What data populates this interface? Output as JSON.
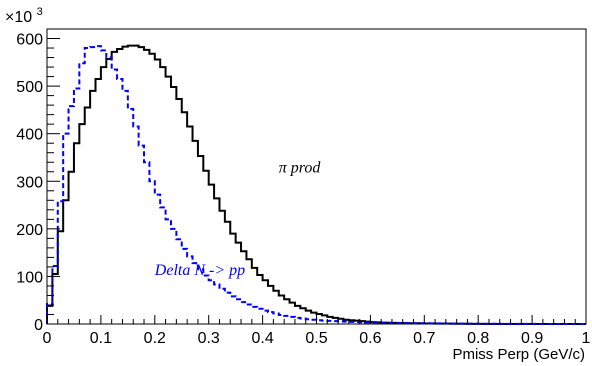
{
  "chart_data": {
    "type": "line",
    "title": "",
    "xlabel": "Pmiss Perp (GeV/c)",
    "ylabel": "",
    "y_multiplier": {
      "base": "×10",
      "exponent": "3"
    },
    "xlim": [
      0,
      1
    ],
    "ylim": [
      0,
      620
    ],
    "x_ticks": [
      0,
      0.1,
      0.2,
      0.3,
      0.4,
      0.5,
      0.6,
      0.7,
      0.8,
      0.9,
      1
    ],
    "x_tick_labels": [
      "0",
      "0.1",
      "0.2",
      "0.3",
      "0.4",
      "0.5",
      "0.6",
      "0.7",
      "0.8",
      "0.9",
      "1"
    ],
    "y_ticks": [
      0,
      100,
      200,
      300,
      400,
      500,
      600
    ],
    "y_tick_labels": [
      "0",
      "100",
      "200",
      "300",
      "400",
      "500",
      "600"
    ],
    "grid": false,
    "legend": "none",
    "bin_width": 0.01,
    "bin_edges_start": 0,
    "series": [
      {
        "style": "solid",
        "color": "#000000",
        "values": [
          38,
          105,
          195,
          260,
          320,
          380,
          420,
          455,
          490,
          515,
          540,
          557,
          572,
          578,
          583,
          585,
          585,
          582,
          576,
          568,
          556,
          540,
          520,
          498,
          473,
          445,
          415,
          385,
          353,
          322,
          293,
          264,
          238,
          215,
          190,
          171,
          153,
          136,
          118,
          103,
          92,
          80,
          70,
          60,
          52,
          45,
          38,
          33,
          28,
          24,
          21,
          18,
          15,
          13,
          11,
          9,
          8,
          7,
          6,
          5,
          4,
          3.5,
          3,
          2.7,
          2.4,
          2.1,
          1.9,
          1.7,
          1.5,
          1.3,
          1.1,
          1,
          0.9,
          0.8,
          0.7,
          0.6,
          0.5,
          0.4,
          0.3,
          0.2,
          0.2,
          0.1,
          0.1,
          0.1,
          0.1,
          0,
          0,
          0,
          0,
          0,
          0,
          0,
          0,
          0,
          0,
          0,
          0,
          0,
          0,
          0
        ]
      },
      {
        "style": "dashed",
        "color": "#0000ff",
        "values": [
          42,
          122,
          258,
          400,
          458,
          495,
          548,
          580,
          582,
          584,
          575,
          560,
          535,
          515,
          490,
          452,
          415,
          375,
          340,
          300,
          272,
          245,
          220,
          200,
          178,
          158,
          142,
          128,
          115,
          102,
          92,
          83,
          74,
          66,
          58,
          52,
          46,
          41,
          36,
          32,
          28,
          25,
          22,
          19,
          17,
          15,
          13,
          11.5,
          10,
          9,
          8,
          7,
          6.5,
          6,
          5.5,
          5,
          4.5,
          4,
          3.6,
          3.3,
          3,
          2.8,
          2.6,
          2.4,
          2.2,
          2,
          1.9,
          1.8,
          1.7,
          1.6,
          1.5,
          1.4,
          1.3,
          1.2,
          1.1,
          1,
          0.9,
          0.8,
          0.7,
          0.6,
          0.5,
          0.5,
          0.4,
          0.4,
          0.3,
          0.3,
          0.3,
          0.2,
          0.2,
          0.2,
          0.2,
          0.1,
          0.1,
          0.1,
          0.1,
          0.1,
          0,
          0,
          0,
          0
        ]
      }
    ],
    "annotations": [
      {
        "text": "π prod",
        "color": "#000000",
        "x": 0.43,
        "y": 318
      },
      {
        "text": "Delta N -> pp",
        "color": "#0000ff",
        "x": 0.2,
        "y": 103
      }
    ]
  }
}
